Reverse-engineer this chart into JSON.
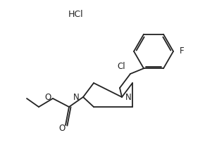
{
  "hcl_label": "HCl",
  "F_label": "F",
  "Cl_label": "Cl",
  "N_label": "N",
  "O_label": "O",
  "background": "#ffffff",
  "line_color": "#222222",
  "text_color": "#222222",
  "lw": 1.3,
  "font_size": 8.5
}
